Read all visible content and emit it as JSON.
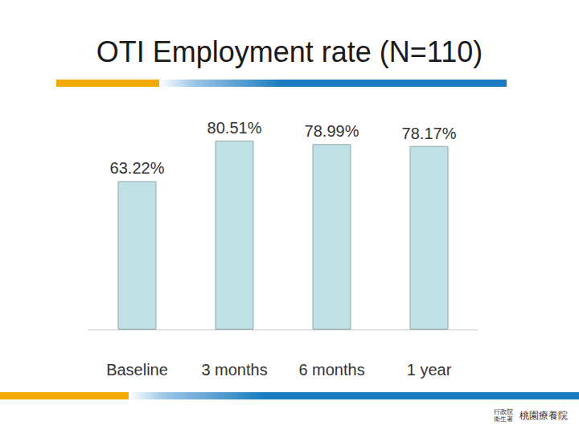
{
  "chart_data": {
    "type": "bar",
    "title": "OTI Employment rate (N=110)",
    "categories": [
      "Baseline",
      "3 months",
      "6 months",
      "1 year"
    ],
    "values": [
      63.22,
      80.51,
      78.99,
      78.17
    ],
    "value_labels": [
      "63.22%",
      "80.51%",
      "78.99%",
      "78.17%"
    ],
    "color": "#bfe1e5",
    "ylim": [
      0,
      100
    ],
    "data_labels": true,
    "tick_labels": "x",
    "grid": false,
    "logo_text": [
      "行政院衛生署",
      "桃園療養院"
    ]
  }
}
